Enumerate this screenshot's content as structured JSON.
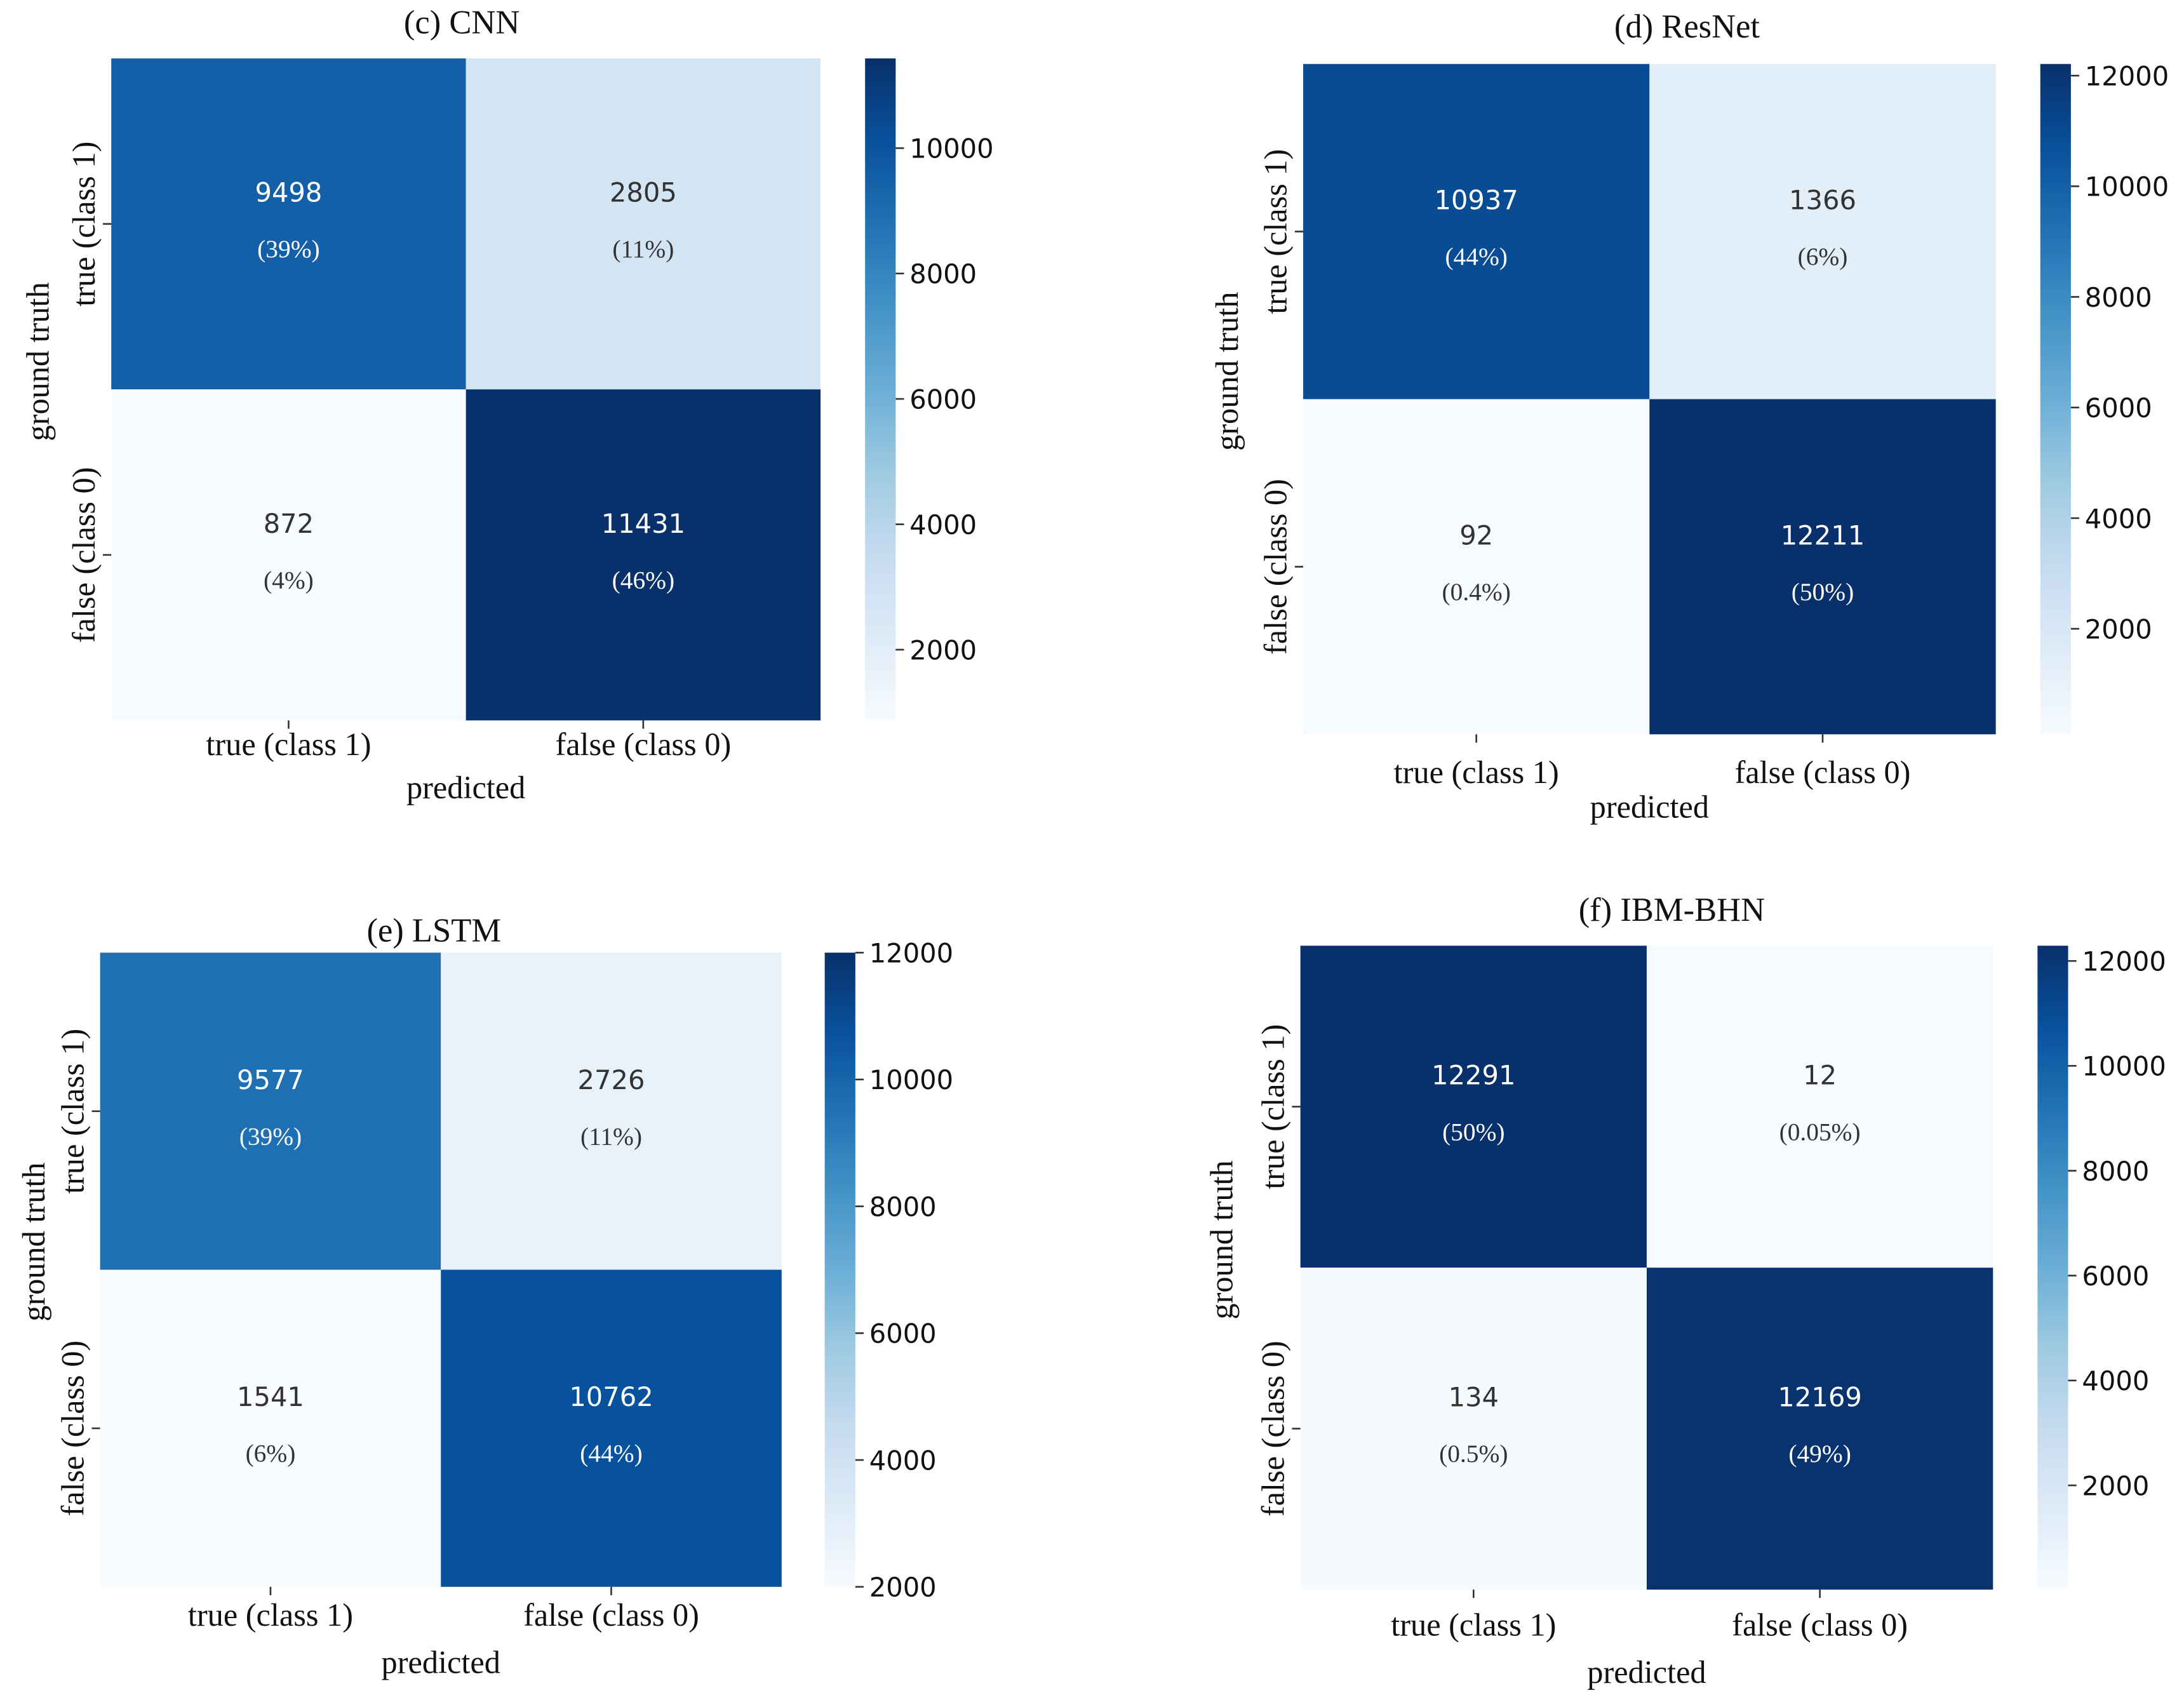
{
  "chart_data": [
    {
      "type": "heatmap",
      "title": "(c) CNN",
      "xlabel": "predicted",
      "ylabel": "ground truth",
      "x_categories": [
        "true (class 1)",
        "false (class 0)"
      ],
      "y_categories": [
        "true (class 1)",
        "false (class 0)"
      ],
      "values": [
        [
          9498,
          2805
        ],
        [
          872,
          11431
        ]
      ],
      "percent_labels": [
        [
          "(39%)",
          "(11%)"
        ],
        [
          "(4%)",
          "(46%)"
        ]
      ],
      "colorbar": {
        "min": 872,
        "max": 11431,
        "ticks": [
          2000,
          4000,
          6000,
          8000,
          10000
        ]
      },
      "colormap": "Blues"
    },
    {
      "type": "heatmap",
      "title": "(d) ResNet",
      "xlabel": "predicted",
      "ylabel": "ground truth",
      "x_categories": [
        "true (class 1)",
        "false (class 0)"
      ],
      "y_categories": [
        "true (class 1)",
        "false (class 0)"
      ],
      "values": [
        [
          10937,
          1366
        ],
        [
          92,
          12211
        ]
      ],
      "percent_labels": [
        [
          "(44%)",
          "(6%)"
        ],
        [
          "(0.4%)",
          "(50%)"
        ]
      ],
      "colorbar": {
        "min": 92,
        "max": 12211,
        "ticks": [
          2000,
          4000,
          6000,
          8000,
          10000,
          12000
        ]
      },
      "colormap": "Blues"
    },
    {
      "type": "heatmap",
      "title": "(e) LSTM",
      "xlabel": "predicted",
      "ylabel": "ground truth",
      "x_categories": [
        "true (class 1)",
        "false (class 0)"
      ],
      "y_categories": [
        "true (class 1)",
        "false (class 0)"
      ],
      "values": [
        [
          9577,
          2726
        ],
        [
          1541,
          10762
        ]
      ],
      "percent_labels": [
        [
          "(39%)",
          "(11%)"
        ],
        [
          "(6%)",
          "(44%)"
        ]
      ],
      "colorbar": {
        "min": 2000,
        "max": 12000,
        "ticks": [
          2000,
          4000,
          6000,
          8000,
          10000,
          12000
        ]
      },
      "colormap": "Blues"
    },
    {
      "type": "heatmap",
      "title": "(f) IBM-BHN",
      "xlabel": "predicted",
      "ylabel": "ground truth",
      "x_categories": [
        "true (class 1)",
        "false (class 0)"
      ],
      "y_categories": [
        "true (class 1)",
        "false (class 0)"
      ],
      "values": [
        [
          12291,
          12
        ],
        [
          134,
          12169
        ]
      ],
      "percent_labels": [
        [
          "(50%)",
          "(0.05%)"
        ],
        [
          "(0.5%)",
          "(49%)"
        ]
      ],
      "colorbar": {
        "min": 12,
        "max": 12291,
        "ticks": [
          2000,
          4000,
          6000,
          8000,
          10000,
          12000
        ]
      },
      "colormap": "Blues"
    }
  ]
}
